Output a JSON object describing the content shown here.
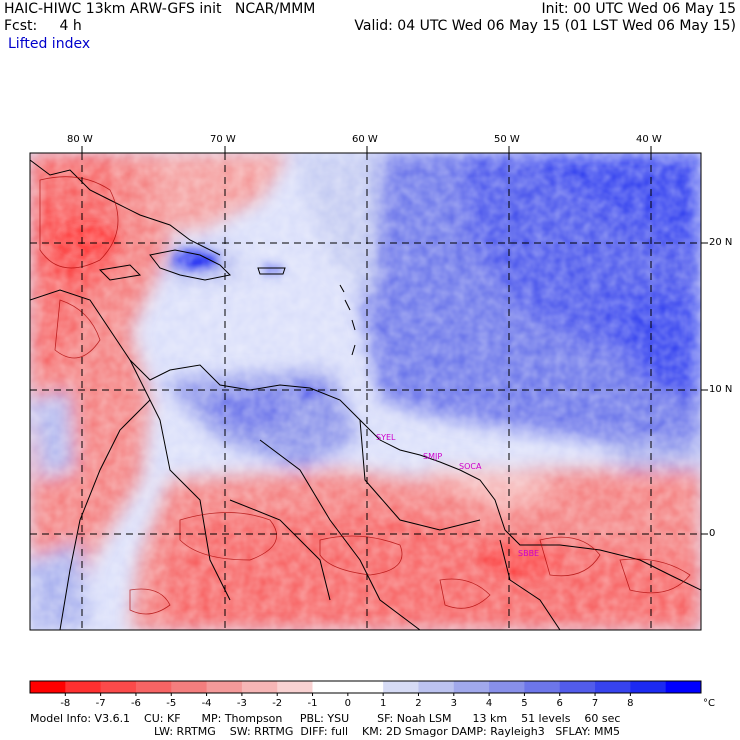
{
  "header": {
    "title": "HAIC-HIWC 13km ARW-GFS init   NCAR/MMM",
    "init": "Init: 00 UTC Wed 06 May 15",
    "fcst": "Fcst:     4 h",
    "valid": "Valid: 04 UTC Wed 06 May 15 (01 LST Wed 06 May 15)",
    "field": "Lifted index"
  },
  "map": {
    "lon_labels": [
      "80 W",
      "70 W",
      "60 W",
      "50 W",
      "40 W"
    ],
    "lat_labels": [
      "20 N",
      "10 N",
      "0"
    ],
    "stations": [
      "SYEL",
      "SMJP",
      "SOCA",
      "SBBE"
    ]
  },
  "colorbar": {
    "ticks": [
      "-8",
      "-7",
      "-6",
      "-5",
      "-4",
      "-3",
      "-2",
      "-1",
      "0",
      "1",
      "2",
      "3",
      "4",
      "5",
      "6",
      "7",
      "8"
    ],
    "unit": "°C",
    "colors": [
      "#ff0000",
      "#ff3030",
      "#fb4a4a",
      "#f76464",
      "#f47e7e",
      "#f49a9a",
      "#f6b6b6",
      "#f9d2d2",
      "#ffffff",
      "#ffffff",
      "#d6dbf5",
      "#bcc3f0",
      "#a1a9ec",
      "#8890ea",
      "#6d76ea",
      "#525ceb",
      "#3743ee",
      "#1c2af2",
      "#0000ff"
    ]
  },
  "footer": {
    "line1": "Model Info: V3.6.1    CU: KF      MP: Thompson     PBL: YSU        SF: Noah LSM      13 km    51 levels    60 sec",
    "line2": "LW: RRTMG    SW: RRTMG  DIFF: full    KM: 2D Smagor DAMP: Rayleigh3   SFLAY: MM5"
  }
}
